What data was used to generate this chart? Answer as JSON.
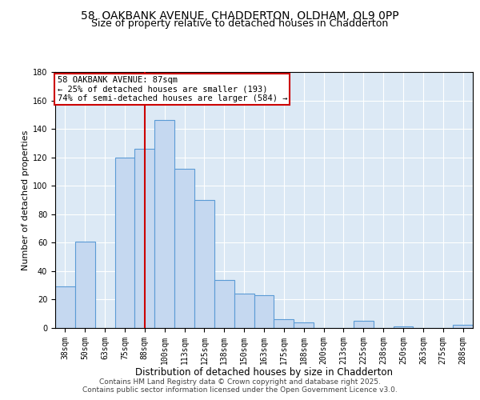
{
  "title1": "58, OAKBANK AVENUE, CHADDERTON, OLDHAM, OL9 0PP",
  "title2": "Size of property relative to detached houses in Chadderton",
  "xlabel": "Distribution of detached houses by size in Chadderton",
  "ylabel": "Number of detached properties",
  "bar_labels": [
    "38sqm",
    "50sqm",
    "63sqm",
    "75sqm",
    "88sqm",
    "100sqm",
    "113sqm",
    "125sqm",
    "138sqm",
    "150sqm",
    "163sqm",
    "175sqm",
    "188sqm",
    "200sqm",
    "213sqm",
    "225sqm",
    "238sqm",
    "250sqm",
    "263sqm",
    "275sqm",
    "288sqm"
  ],
  "bar_values": [
    29,
    61,
    0,
    120,
    126,
    146,
    112,
    90,
    34,
    24,
    23,
    6,
    4,
    0,
    0,
    5,
    0,
    1,
    0,
    0,
    2
  ],
  "bar_color": "#c5d8f0",
  "bar_edge_color": "#5b9bd5",
  "vline_index": 4.5,
  "vline_color": "#cc0000",
  "annotation_text": "58 OAKBANK AVENUE: 87sqm\n← 25% of detached houses are smaller (193)\n74% of semi-detached houses are larger (584) →",
  "annotation_box_color": "#ffffff",
  "annotation_box_edge": "#cc0000",
  "ylim": [
    0,
    180
  ],
  "yticks": [
    0,
    20,
    40,
    60,
    80,
    100,
    120,
    140,
    160,
    180
  ],
  "bg_color": "#dce9f5",
  "footer1": "Contains HM Land Registry data © Crown copyright and database right 2025.",
  "footer2": "Contains public sector information licensed under the Open Government Licence v3.0.",
  "title1_fontsize": 10,
  "title2_fontsize": 9,
  "xlabel_fontsize": 8.5,
  "ylabel_fontsize": 8,
  "tick_fontsize": 7,
  "footer_fontsize": 6.5
}
